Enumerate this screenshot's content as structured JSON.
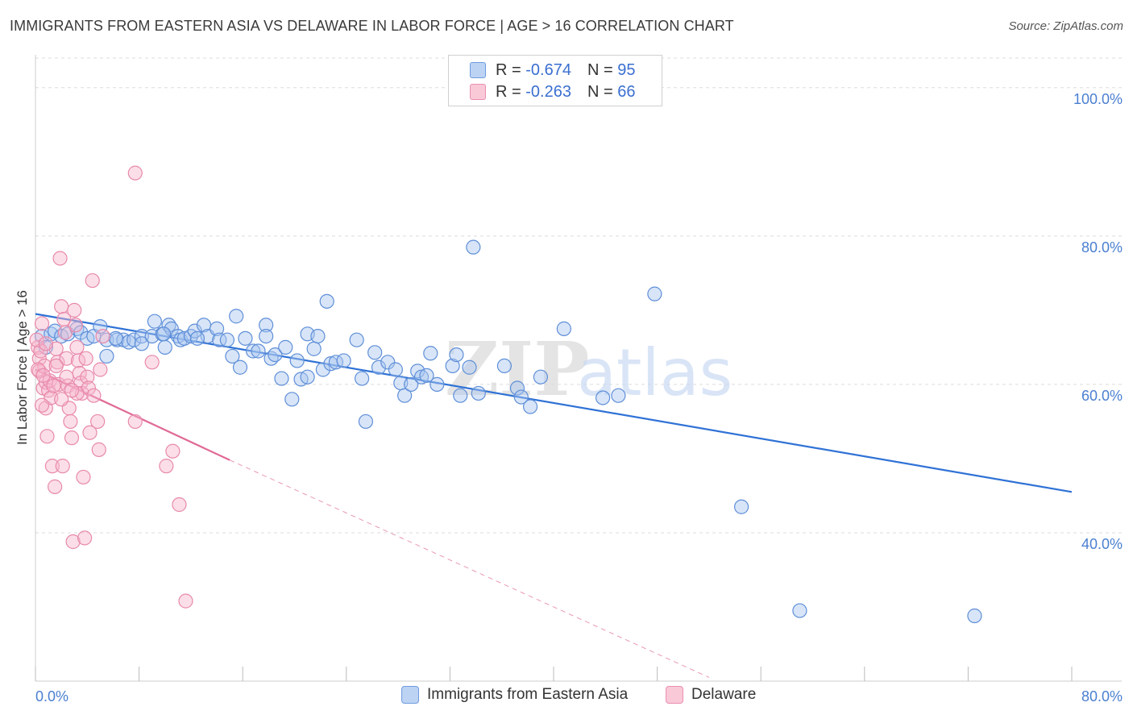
{
  "title": "IMMIGRANTS FROM EASTERN ASIA VS DELAWARE IN LABOR FORCE | AGE > 16 CORRELATION CHART",
  "source": "Source: ZipAtlas.com",
  "legend": {
    "rows": [
      {
        "r_label": "R =",
        "r_value": "-0.674",
        "n_label": "N =",
        "n_value": "95"
      },
      {
        "r_label": "R =",
        "r_value": "-0.263",
        "n_label": "N =",
        "n_value": "66"
      }
    ]
  },
  "colors": {
    "blue": "#4a86d8",
    "blue_fill": "#a9c6f0",
    "pink": "#e06a96",
    "pink_fill": "#f6b6cb",
    "axis_text": "#4a7fd1"
  },
  "chart_data": {
    "type": "scatter",
    "title": "IMMIGRANTS FROM EASTERN ASIA VS DELAWARE IN LABOR FORCE | AGE > 16 CORRELATION CHART",
    "xlabel": "",
    "ylabel": "In Labor Force | Age > 16",
    "xlim": [
      0,
      80
    ],
    "ylim": [
      20,
      104
    ],
    "x_tick_labels": [
      "0.0%",
      "80.0%"
    ],
    "y_ticks": [
      40,
      60,
      80,
      100
    ],
    "y_tick_labels": [
      "40.0%",
      "60.0%",
      "80.0%",
      "100.0%"
    ],
    "watermark": "ZIPatlas",
    "series": [
      {
        "name": "Immigrants from Eastern Asia",
        "color": "#4a86d8",
        "points": [
          [
            0.5,
            66.5
          ],
          [
            0.8,
            65.0
          ],
          [
            1.2,
            66.8
          ],
          [
            1.5,
            67.2
          ],
          [
            2.0,
            66.5
          ],
          [
            2.5,
            66.8
          ],
          [
            3.2,
            67.5
          ],
          [
            3.5,
            67.0
          ],
          [
            4.0,
            66.2
          ],
          [
            4.5,
            66.5
          ],
          [
            5.0,
            67.8
          ],
          [
            5.5,
            66.0
          ],
          [
            5.5,
            63.8
          ],
          [
            6.3,
            66.0
          ],
          [
            6.8,
            66.0
          ],
          [
            7.2,
            65.7
          ],
          [
            7.6,
            66.0
          ],
          [
            8.2,
            66.5
          ],
          [
            8.2,
            65.5
          ],
          [
            9.0,
            66.5
          ],
          [
            9.2,
            68.5
          ],
          [
            9.8,
            66.8
          ],
          [
            10.0,
            65.0
          ],
          [
            10.3,
            68.0
          ],
          [
            10.5,
            67.5
          ],
          [
            11.0,
            66.5
          ],
          [
            11.2,
            66.0
          ],
          [
            11.5,
            66.2
          ],
          [
            12.0,
            66.5
          ],
          [
            12.3,
            67.2
          ],
          [
            13.0,
            68.0
          ],
          [
            13.3,
            66.5
          ],
          [
            14.0,
            67.5
          ],
          [
            14.2,
            66.0
          ],
          [
            14.8,
            66.0
          ],
          [
            15.2,
            63.8
          ],
          [
            15.5,
            69.2
          ],
          [
            15.8,
            62.3
          ],
          [
            16.2,
            66.2
          ],
          [
            16.8,
            64.5
          ],
          [
            17.2,
            64.5
          ],
          [
            17.8,
            68.0
          ],
          [
            18.2,
            63.5
          ],
          [
            18.5,
            64.0
          ],
          [
            19.0,
            60.8
          ],
          [
            19.3,
            65.0
          ],
          [
            19.8,
            58.0
          ],
          [
            20.2,
            63.2
          ],
          [
            20.5,
            60.7
          ],
          [
            21.0,
            66.8
          ],
          [
            21.5,
            64.8
          ],
          [
            21.8,
            66.5
          ],
          [
            22.2,
            62.0
          ],
          [
            22.5,
            71.2
          ],
          [
            22.8,
            62.8
          ],
          [
            23.2,
            63.0
          ],
          [
            23.8,
            63.2
          ],
          [
            24.8,
            66.0
          ],
          [
            25.2,
            60.8
          ],
          [
            25.5,
            55.0
          ],
          [
            26.2,
            64.3
          ],
          [
            26.5,
            62.3
          ],
          [
            27.2,
            63.0
          ],
          [
            27.8,
            62.0
          ],
          [
            28.2,
            60.2
          ],
          [
            28.5,
            58.5
          ],
          [
            29.0,
            60.0
          ],
          [
            29.5,
            61.8
          ],
          [
            29.8,
            61.0
          ],
          [
            30.2,
            61.2
          ],
          [
            30.5,
            64.2
          ],
          [
            31.0,
            60.0
          ],
          [
            32.2,
            62.5
          ],
          [
            32.5,
            64.0
          ],
          [
            32.8,
            58.5
          ],
          [
            33.5,
            62.3
          ],
          [
            33.8,
            78.5
          ],
          [
            34.2,
            58.8
          ],
          [
            36.2,
            62.5
          ],
          [
            37.2,
            59.5
          ],
          [
            37.5,
            58.3
          ],
          [
            38.2,
            57.0
          ],
          [
            39.0,
            61.0
          ],
          [
            40.8,
            67.5
          ],
          [
            43.8,
            58.2
          ],
          [
            45.0,
            58.5
          ],
          [
            47.8,
            72.2
          ],
          [
            54.5,
            43.5
          ],
          [
            59.0,
            29.5
          ],
          [
            72.5,
            28.8
          ],
          [
            9.9,
            66.8
          ],
          [
            21.0,
            61.0
          ],
          [
            12.5,
            66.2
          ],
          [
            17.8,
            66.5
          ],
          [
            6.2,
            66.2
          ]
        ]
      },
      {
        "name": "Delaware",
        "color": "#e06a96",
        "points": [
          [
            0.2,
            65.0
          ],
          [
            0.3,
            63.5
          ],
          [
            0.3,
            61.8
          ],
          [
            0.5,
            68.2
          ],
          [
            0.6,
            59.5
          ],
          [
            0.7,
            62.5
          ],
          [
            0.8,
            60.3
          ],
          [
            0.8,
            56.8
          ],
          [
            0.9,
            53.0
          ],
          [
            1.0,
            59.2
          ],
          [
            1.1,
            60.5
          ],
          [
            1.2,
            58.2
          ],
          [
            1.3,
            49.0
          ],
          [
            1.5,
            46.2
          ],
          [
            1.6,
            64.8
          ],
          [
            1.7,
            63.0
          ],
          [
            1.8,
            60.0
          ],
          [
            1.9,
            77.0
          ],
          [
            2.0,
            70.5
          ],
          [
            2.1,
            49.0
          ],
          [
            2.2,
            68.8
          ],
          [
            2.3,
            67.0
          ],
          [
            2.4,
            63.5
          ],
          [
            2.5,
            59.8
          ],
          [
            2.6,
            56.8
          ],
          [
            2.7,
            55.0
          ],
          [
            2.8,
            52.8
          ],
          [
            2.9,
            38.8
          ],
          [
            3.0,
            70.0
          ],
          [
            3.1,
            68.0
          ],
          [
            3.2,
            65.0
          ],
          [
            3.3,
            63.2
          ],
          [
            3.4,
            61.5
          ],
          [
            3.5,
            60.2
          ],
          [
            3.6,
            58.8
          ],
          [
            3.7,
            47.5
          ],
          [
            3.8,
            39.3
          ],
          [
            3.9,
            63.5
          ],
          [
            4.0,
            61.0
          ],
          [
            4.1,
            59.5
          ],
          [
            4.2,
            53.5
          ],
          [
            4.4,
            74.0
          ],
          [
            4.5,
            58.5
          ],
          [
            4.8,
            55.0
          ],
          [
            4.9,
            51.2
          ],
          [
            5.0,
            62.0
          ],
          [
            5.2,
            66.5
          ],
          [
            7.7,
            88.5
          ],
          [
            7.7,
            55.0
          ],
          [
            9.0,
            63.0
          ],
          [
            10.1,
            49.0
          ],
          [
            10.6,
            51.0
          ],
          [
            11.1,
            43.8
          ],
          [
            11.6,
            30.8
          ],
          [
            0.2,
            62.0
          ],
          [
            0.4,
            64.5
          ],
          [
            0.6,
            61.2
          ],
          [
            1.4,
            59.8
          ],
          [
            2.0,
            58.0
          ],
          [
            2.4,
            61.0
          ],
          [
            3.2,
            58.8
          ],
          [
            0.1,
            66.0
          ],
          [
            0.8,
            65.5
          ],
          [
            1.6,
            62.5
          ],
          [
            2.8,
            59.2
          ],
          [
            0.5,
            57.2
          ]
        ]
      }
    ],
    "trend_lines": [
      {
        "series": "Immigrants from Eastern Asia",
        "x": [
          0,
          80
        ],
        "y": [
          69.5,
          45.5
        ],
        "style": "solid"
      },
      {
        "series": "Delaware",
        "x": [
          0,
          15
        ],
        "y": [
          62.0,
          49.8
        ],
        "style": "solid"
      },
      {
        "series": "Delaware",
        "x": [
          15,
          52
        ],
        "y": [
          49.8,
          20.5
        ],
        "style": "dashed"
      }
    ]
  }
}
